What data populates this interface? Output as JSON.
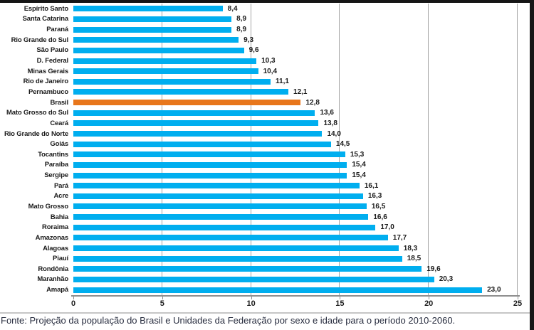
{
  "chart_data": {
    "type": "bar",
    "orientation": "horizontal",
    "title": "",
    "xlabel": "",
    "ylabel": "",
    "categories": [
      "Espírito Santo",
      "Santa Catarina",
      "Paraná",
      "Rio Grande do Sul",
      "São Paulo",
      "D. Federal",
      "Minas Gerais",
      "Rio de Janeiro",
      "Pernambuco",
      "Brasil",
      "Mato Grosso do Sul",
      "Ceará",
      "Rio Grande do Norte",
      "Goiás",
      "Tocantins",
      "Paraíba",
      "Sergipe",
      "Pará",
      "Acre",
      "Mato Grosso",
      "Bahia",
      "Roraima",
      "Amazonas",
      "Alagoas",
      "Piauí",
      "Rondônia",
      "Maranhão",
      "Amapá"
    ],
    "values": [
      8.4,
      8.9,
      8.9,
      9.3,
      9.6,
      10.3,
      10.4,
      11.1,
      12.1,
      12.8,
      13.6,
      13.8,
      14.0,
      14.5,
      15.3,
      15.4,
      15.4,
      16.1,
      16.3,
      16.5,
      16.6,
      17.0,
      17.7,
      18.3,
      18.5,
      19.6,
      20.3,
      23.0
    ],
    "value_labels": [
      "8,4",
      "8,9",
      "8,9",
      "9,3",
      "9,6",
      "10,3",
      "10,4",
      "11,1",
      "12,1",
      "12,8",
      "13,6",
      "13,8",
      "14,0",
      "14,5",
      "15,3",
      "15,4",
      "15,4",
      "16,1",
      "16,3",
      "16,5",
      "16,6",
      "17,0",
      "17,7",
      "18,3",
      "18,5",
      "19,6",
      "20,3",
      "23,0"
    ],
    "x_ticks": [
      "0",
      "5",
      "10",
      "15",
      "20",
      "25"
    ],
    "xlim": [
      0,
      25
    ],
    "grid": true,
    "legend": false,
    "highlight_category": "Brasil",
    "bar_color": "#00AEEF",
    "highlight_color": "#E8761B",
    "gridline_color": "#A6A6A6"
  },
  "footer": {
    "source_text": "Fonte: Projeção da população do Brasil e Unidades da Federação por sexo e idade para o período 2010-2060."
  }
}
